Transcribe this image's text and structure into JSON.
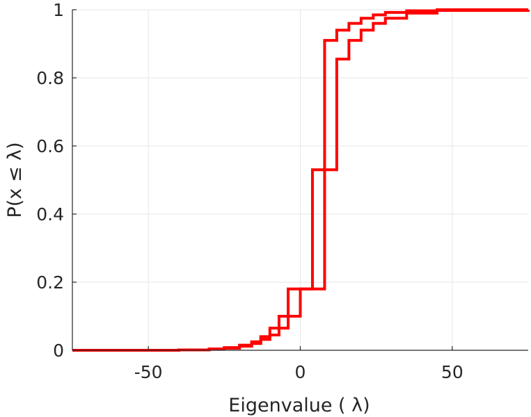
{
  "chart_data": {
    "type": "line",
    "xlabel": "Eigenvalue (  λ)",
    "ylabel": "P(x ≤ λ)",
    "xlim": [
      -75,
      75
    ],
    "ylim": [
      0,
      1
    ],
    "xticks": [
      -50,
      0,
      50
    ],
    "yticks": [
      0,
      0.2,
      0.4,
      0.6,
      0.8,
      1
    ],
    "xtick_labels": [
      "-50",
      "0",
      "50"
    ],
    "ytick_labels": [
      "0",
      "0.2",
      "0.4",
      "0.6",
      "0.8",
      "1"
    ],
    "grid": true,
    "line_color": "#ff0000",
    "series": [
      {
        "style": "step",
        "x": [
          -75,
          -40,
          -30,
          -25,
          -20,
          -16,
          -13,
          -10,
          -7,
          -4,
          0,
          4,
          8,
          12,
          16,
          20,
          24,
          28,
          35,
          45,
          75
        ],
        "y": [
          0,
          0.001,
          0.004,
          0.008,
          0.015,
          0.025,
          0.04,
          0.065,
          0.1,
          0.18,
          0.18,
          0.53,
          0.91,
          0.94,
          0.96,
          0.975,
          0.985,
          0.992,
          0.997,
          1.0,
          1.0
        ]
      },
      {
        "style": "step",
        "x": [
          -75,
          -40,
          -30,
          -25,
          -20,
          -16,
          -13,
          -10,
          -7,
          -4,
          0,
          4,
          8,
          12,
          16,
          20,
          24,
          28,
          35,
          45,
          75
        ],
        "y": [
          0,
          0.001,
          0.003,
          0.006,
          0.012,
          0.02,
          0.032,
          0.045,
          0.065,
          0.1,
          0.18,
          0.18,
          0.53,
          0.855,
          0.91,
          0.94,
          0.96,
          0.975,
          0.99,
          0.998,
          1.0
        ]
      }
    ]
  }
}
